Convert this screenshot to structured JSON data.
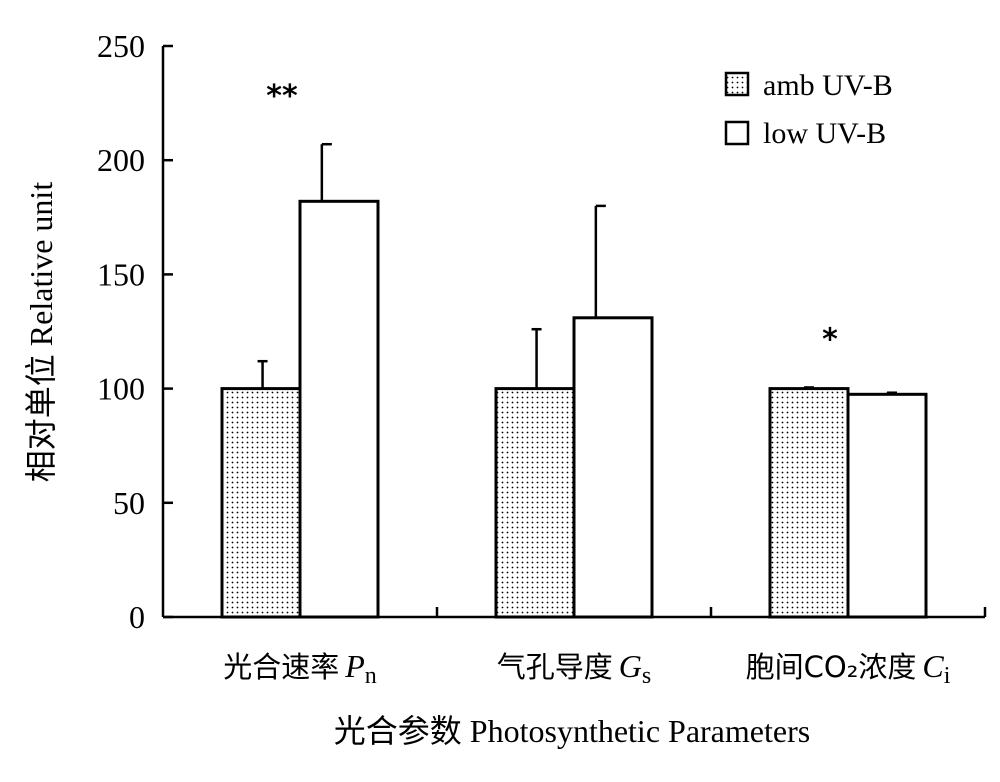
{
  "chart_data": {
    "type": "bar",
    "ylabel": "相对单位 Relative unit",
    "xlabel": "光合参数 Photosynthetic Parameters",
    "ylim": [
      0,
      250
    ],
    "yticks": [
      0,
      50,
      100,
      150,
      200,
      250
    ],
    "grid": false,
    "legend_position": "top-right",
    "categories": [
      {
        "zh": "光合速率",
        "sym": "P",
        "sub": "n"
      },
      {
        "zh": "气孔导度",
        "sym": "G",
        "sub": "s"
      },
      {
        "zh": "胞间CO₂浓度",
        "sym": "C",
        "sub": "i"
      }
    ],
    "series": [
      {
        "name": "amb UV-B",
        "pattern": "dotted",
        "fill_color": "#ffffff",
        "dot_color": "#000000",
        "values": [
          100,
          100,
          100
        ],
        "errors": [
          12,
          26,
          0.5
        ]
      },
      {
        "name": "low UV-B",
        "pattern": "none",
        "fill_color": "#ffffff",
        "values": [
          182,
          131,
          97.5
        ],
        "errors": [
          25,
          49,
          0.7
        ]
      }
    ],
    "significance": [
      "**",
      "",
      "*"
    ]
  }
}
